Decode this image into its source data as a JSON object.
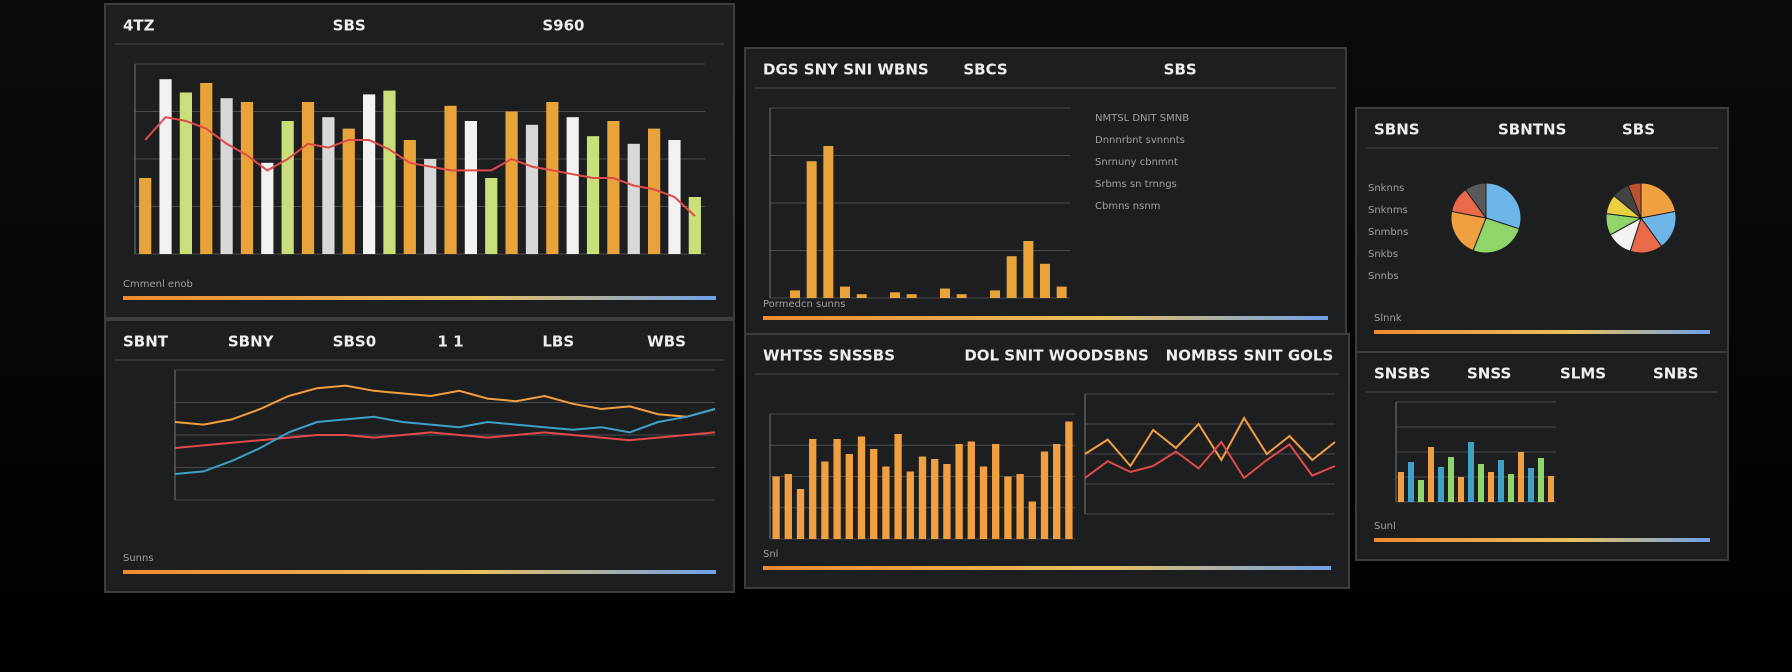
{
  "panels": [
    {
      "header": [
        "4TZ",
        "SBS",
        "S960"
      ],
      "caption": "Cmmenl enob",
      "charts": [
        {
          "type": "bar",
          "ylim": [
            0,
            100
          ],
          "values": [
            40,
            92,
            85,
            90,
            82,
            80,
            48,
            70,
            80,
            72,
            66,
            84,
            86,
            60,
            50,
            78,
            70,
            40,
            75,
            68,
            80,
            72,
            62,
            70,
            58,
            66,
            60,
            30
          ],
          "colors": [
            "#e8a33a",
            "#f2f2f2",
            "#c9e07a",
            "#e8a33a",
            "#d8d8d8"
          ],
          "line": {
            "color": "#e04a4a",
            "values": [
              60,
              72,
              70,
              66,
              58,
              52,
              44,
              50,
              58,
              56,
              60,
              60,
              55,
              48,
              46,
              44,
              44,
              44,
              50,
              46,
              44,
              42,
              40,
              40,
              36,
              34,
              30,
              20
            ]
          }
        }
      ]
    },
    {
      "header": [
        "DGS SNY SNI WBNS",
        "SBCS",
        "SBS"
      ],
      "caption": "Pormedcn sunns",
      "side": [
        "NMTSL DNIT SMNB",
        "Dnnnrbnt svnnnts",
        "Snrnuny cbnmnt",
        "Srbms sn trnngs",
        "Cbmns nsnm"
      ],
      "charts": [
        {
          "type": "bar",
          "ylim": [
            0,
            100
          ],
          "values": [
            0,
            4,
            72,
            80,
            6,
            2,
            0,
            3,
            2,
            0,
            5,
            2,
            0,
            4,
            22,
            30,
            18,
            6
          ],
          "colors": [
            "#e8a33a"
          ]
        }
      ]
    },
    {
      "header": [
        "SBNS",
        "SBNTNS",
        "SBS"
      ],
      "caption": "Slnnk",
      "side": [
        "Snknns",
        "Snknms",
        "Snmbns",
        "Snkbs",
        "Snnbs"
      ],
      "charts": [
        {
          "type": "pie",
          "values": [
            30,
            26,
            22,
            12,
            10
          ],
          "colors": [
            "#6fb6e8",
            "#8fd66a",
            "#f0a040",
            "#e86a4a",
            "#5a5a5a"
          ]
        },
        {
          "type": "pie",
          "values": [
            22,
            18,
            15,
            12,
            10,
            9,
            8,
            6
          ],
          "colors": [
            "#f0a040",
            "#6fb6e8",
            "#e86a4a",
            "#f2f2f2",
            "#8fd66a",
            "#e8d040",
            "#444444",
            "#c05030"
          ]
        }
      ]
    },
    {
      "header": [
        "SBNT",
        "SBNY",
        "SBS0",
        "1 1",
        "LBS",
        "WBS"
      ],
      "caption": "Sunns",
      "charts": [
        {
          "type": "line",
          "ylim": [
            0,
            100
          ],
          "series": [
            {
              "color": "#f0a040",
              "values": [
                60,
                58,
                62,
                70,
                80,
                86,
                88,
                84,
                82,
                80,
                84,
                78,
                76,
                80,
                74,
                70,
                72,
                66,
                64,
                70
              ]
            },
            {
              "color": "#e04a4a",
              "values": [
                40,
                42,
                44,
                46,
                48,
                50,
                50,
                48,
                50,
                52,
                50,
                48,
                50,
                52,
                50,
                48,
                46,
                48,
                50,
                52
              ]
            },
            {
              "color": "#3fa0c8",
              "values": [
                20,
                22,
                30,
                40,
                52,
                60,
                62,
                64,
                60,
                58,
                56,
                60,
                58,
                56,
                54,
                56,
                52,
                60,
                64,
                70
              ]
            }
          ]
        }
      ]
    },
    {
      "header": [
        "WHTSS SNSSBS",
        "DOL SNIT WOODSBNS",
        "NOMBSS SNIT GOLS"
      ],
      "caption": "Snl",
      "charts": [
        {
          "type": "bar",
          "ylim": [
            0,
            100
          ],
          "values": [
            50,
            52,
            40,
            80,
            62,
            80,
            68,
            82,
            72,
            58,
            84,
            54,
            66,
            64,
            60,
            76,
            78,
            58,
            76,
            50,
            52,
            30,
            70,
            76,
            94
          ],
          "colors": [
            "#f0a040"
          ]
        },
        {
          "type": "line",
          "ylim": [
            0,
            100
          ],
          "series": [
            {
              "color": "#f0a040",
              "values": [
                50,
                62,
                40,
                70,
                55,
                75,
                45,
                80,
                50,
                65,
                45,
                60
              ]
            },
            {
              "color": "#e04a4a",
              "values": [
                30,
                44,
                35,
                40,
                52,
                38,
                60,
                30,
                45,
                58,
                32,
                40
              ]
            }
          ]
        }
      ]
    },
    {
      "header": [
        "SNSBS",
        "SNSS",
        "SLMS",
        "SNBS"
      ],
      "caption": "Sunl",
      "charts": [
        {
          "type": "bar",
          "ylim": [
            0,
            100
          ],
          "values": [
            30,
            40,
            22,
            55,
            35,
            45,
            25,
            60,
            38,
            30,
            42,
            28,
            50,
            34,
            44,
            26
          ],
          "colors": [
            "#f0a040",
            "#3fa0c8",
            "#8fd66a"
          ]
        }
      ]
    }
  ]
}
